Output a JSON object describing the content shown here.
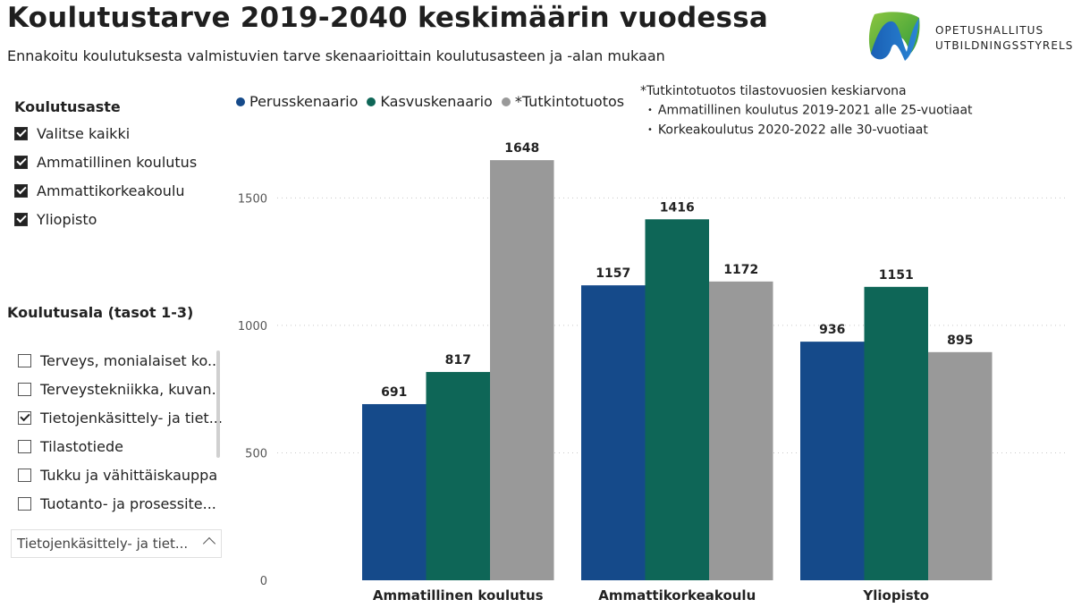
{
  "header": {
    "title": "Koulutustarve 2019-2040 keskimäärin vuodessa",
    "subtitle": "Ennakoitu koulutuksesta valmistuvien tarve skenaarioittain koulutusasteen ja -alan mukaan"
  },
  "logo": {
    "line1": "OPETUSHALLITUS",
    "line2": "UTBILDNINGSSTYRELSEN"
  },
  "slicer_level": {
    "title": "Koulutusaste",
    "items": [
      {
        "label": "Valitse kaikki",
        "checked": true
      },
      {
        "label": "Ammatillinen koulutus",
        "checked": true
      },
      {
        "label": "Ammattikorkeakoulu",
        "checked": true
      },
      {
        "label": "Yliopisto",
        "checked": true
      }
    ]
  },
  "slicer_field": {
    "title": "Koulutusala (tasot 1-3)",
    "items": [
      {
        "label": "Terveys, monialaiset ko...",
        "checked": false
      },
      {
        "label": "Terveystekniikka, kuvan...",
        "checked": false
      },
      {
        "label": "Tietojenkäsittely- ja tiet...",
        "checked": true
      },
      {
        "label": "Tilastotiede",
        "checked": false
      },
      {
        "label": "Tukku ja vähittäiskauppa",
        "checked": false
      },
      {
        "label": "Tuotanto- ja prosessite...",
        "checked": false
      }
    ],
    "selected": "Tietojenkäsittely- ja tiet..."
  },
  "note": {
    "title": "*Tutkintotuotos tilastovuosien keskiarvona",
    "lines": [
      "Ammatillinen koulutus 2019-2021 alle 25-vuotiaat",
      "Korkeakoulutus 2020-2022 alle 30-vuotiaat"
    ]
  },
  "colors": {
    "series": [
      "#154a8a",
      "#0e6657",
      "#999999"
    ],
    "grid": "#c8c8c8",
    "axis_text": "#555555"
  },
  "chart_data": {
    "type": "bar",
    "categories": [
      "Ammatillinen koulutus",
      "Ammattikorkeakoulu",
      "Yliopisto"
    ],
    "series": [
      {
        "name": "Perusskenaario",
        "values": [
          691,
          1157,
          936
        ]
      },
      {
        "name": "Kasvuskenaario",
        "values": [
          817,
          1416,
          1151
        ]
      },
      {
        "name": "*Tutkintotuotos",
        "values": [
          1648,
          1172,
          895
        ]
      }
    ],
    "ylim": [
      0,
      1680
    ],
    "yticks": [
      0,
      500,
      1000,
      1500
    ],
    "grid": true,
    "legend": "top-left"
  }
}
